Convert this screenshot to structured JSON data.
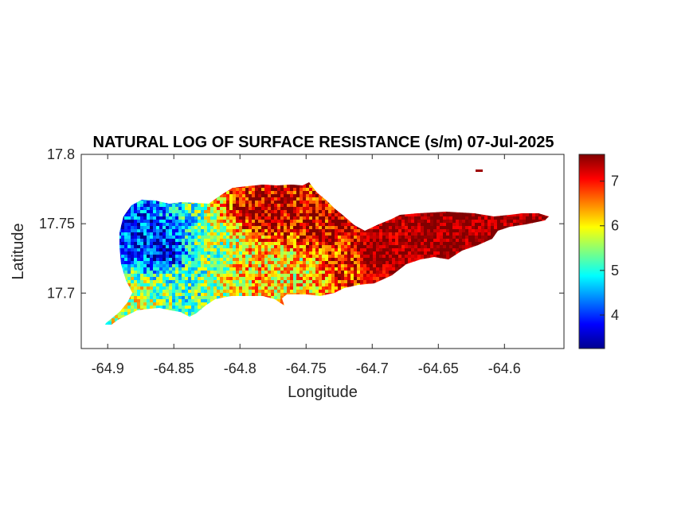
{
  "chart_data": {
    "type": "heatmap",
    "title": "NATURAL LOG OF SURFACE RESISTANCE (s/m) 07-Jul-2025",
    "xlabel": "Longitude",
    "ylabel": "Latitude",
    "xlim": [
      -64.92,
      -64.555
    ],
    "ylim": [
      17.66,
      17.8
    ],
    "x_ticks": [
      -64.9,
      -64.85,
      -64.8,
      -64.75,
      -64.7,
      -64.65,
      -64.6
    ],
    "x_tick_labels": [
      "-64.9",
      "-64.85",
      "-64.8",
      "-64.75",
      "-64.7",
      "-64.65",
      "-64.6"
    ],
    "y_ticks": [
      17.7,
      17.75,
      17.8
    ],
    "y_tick_labels": [
      "17.7",
      "17.75",
      "17.8"
    ],
    "colormap": "jet",
    "colorbar": {
      "range": [
        3.25,
        7.6
      ],
      "ticks": [
        4,
        5,
        6,
        7
      ],
      "tick_labels": [
        "4",
        "5",
        "6",
        "7"
      ]
    },
    "grid": false,
    "regions": [
      {
        "lon": -64.88,
        "lat": 17.745,
        "value": 4.0
      },
      {
        "lon": -64.86,
        "lat": 17.73,
        "value": 3.8
      },
      {
        "lon": -64.85,
        "lat": 17.71,
        "value": 5.2
      },
      {
        "lon": -64.88,
        "lat": 17.7,
        "value": 5.8
      },
      {
        "lon": -64.82,
        "lat": 17.73,
        "value": 5.5
      },
      {
        "lon": -64.79,
        "lat": 17.72,
        "value": 6.2
      },
      {
        "lon": -64.76,
        "lat": 17.72,
        "value": 6.0
      },
      {
        "lon": -64.78,
        "lat": 17.76,
        "value": 7.4
      },
      {
        "lon": -64.74,
        "lat": 17.745,
        "value": 7.2
      },
      {
        "lon": -64.72,
        "lat": 17.725,
        "value": 6.8
      },
      {
        "lon": -64.7,
        "lat": 17.73,
        "value": 7.5
      },
      {
        "lon": -64.65,
        "lat": 17.745,
        "value": 7.5
      },
      {
        "lon": -64.6,
        "lat": 17.745,
        "value": 7.5
      }
    ]
  }
}
